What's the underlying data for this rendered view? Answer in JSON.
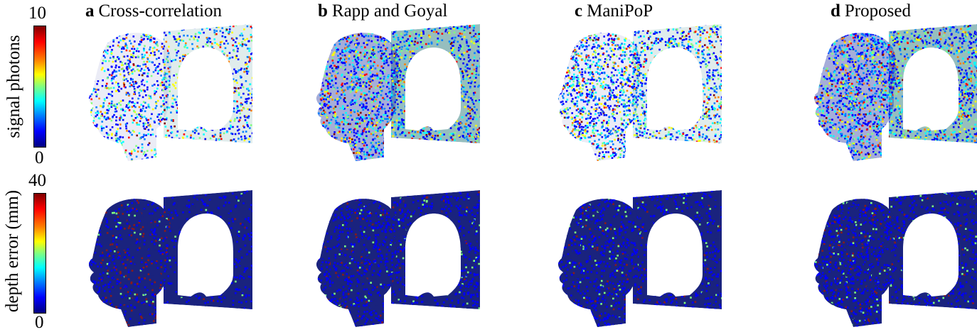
{
  "panels": [
    {
      "letter": "a",
      "name": "Cross-correlation"
    },
    {
      "letter": "b",
      "name": "Rapp and Goyal"
    },
    {
      "letter": "c",
      "name": "ManiPoP"
    },
    {
      "letter": "d",
      "name": "Proposed"
    }
  ],
  "colorbars": {
    "top": {
      "label": "signal photons",
      "max": "10",
      "min": "0"
    },
    "bottom": {
      "label": "depth error (mm)",
      "max": "40",
      "min": "0"
    }
  },
  "colors": {
    "colormap": [
      "#00007f",
      "#0000ff",
      "#0080ff",
      "#00ffff",
      "#80ff80",
      "#ffff00",
      "#ff8000",
      "#ff0000",
      "#7f0000"
    ],
    "depth_error_base": "#1a237e",
    "depth_error_edge": "#8b1a1a"
  }
}
